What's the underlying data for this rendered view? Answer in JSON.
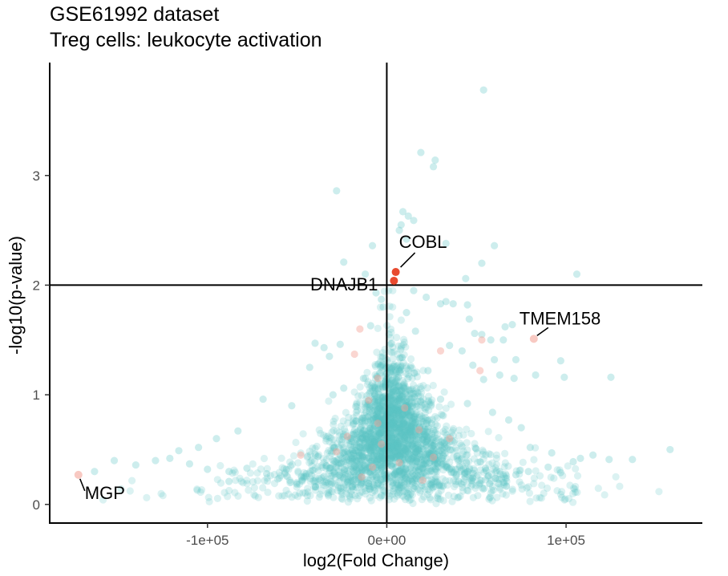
{
  "chart_data": {
    "type": "scatter",
    "title": "GSE61992 dataset",
    "subtitle": "Treg cells: leukocyte activation",
    "xlabel": "log2(Fold Change)",
    "ylabel": "-log10(p-value)",
    "xlim": [
      -188000,
      176000
    ],
    "ylim": [
      -0.17,
      4.03
    ],
    "x_ticks": [
      {
        "value": -100000,
        "label": "-1e+05"
      },
      {
        "value": 0,
        "label": "0e+00"
      },
      {
        "value": 100000,
        "label": "1e+05"
      }
    ],
    "y_ticks": [
      {
        "value": 0,
        "label": "0"
      },
      {
        "value": 1,
        "label": "1"
      },
      {
        "value": 2,
        "label": "2"
      },
      {
        "value": 3,
        "label": "3"
      }
    ],
    "reference_lines": {
      "x": 0,
      "y": 2
    },
    "grid": false,
    "colors": {
      "background_points": "#5bc4c4",
      "highlight_points": "#e84a2f",
      "faint_highlight": "#f4a59a"
    },
    "labeled_points": [
      {
        "gene": "COBL",
        "x": 5000,
        "y": 2.12
      },
      {
        "gene": "DNAJB1",
        "x": 4000,
        "y": 2.04
      },
      {
        "gene": "TMEM158",
        "x": 82000,
        "y": 1.51
      },
      {
        "gene": "MGP",
        "x": -172000,
        "y": 0.27
      }
    ],
    "background_points": [
      [
        54000,
        3.78
      ],
      [
        19000,
        3.21
      ],
      [
        27000,
        3.14
      ],
      [
        26000,
        3.08
      ],
      [
        -28000,
        2.86
      ],
      [
        9000,
        2.67
      ],
      [
        12000,
        2.63
      ],
      [
        15000,
        2.59
      ],
      [
        8000,
        2.55
      ],
      [
        7000,
        2.5
      ],
      [
        11000,
        2.42
      ],
      [
        -8000,
        2.36
      ],
      [
        60000,
        2.36
      ],
      [
        33000,
        2.38
      ],
      [
        106000,
        2.1
      ],
      [
        -24000,
        2.21
      ],
      [
        -12000,
        2.1
      ],
      [
        53000,
        2.2
      ],
      [
        44000,
        2.06
      ],
      [
        15000,
        1.95
      ],
      [
        -6000,
        1.93
      ],
      [
        22000,
        1.89
      ],
      [
        30000,
        1.83
      ],
      [
        -3000,
        1.87
      ],
      [
        33000,
        1.85
      ],
      [
        37000,
        1.83
      ],
      [
        45000,
        1.82
      ],
      [
        -2000,
        1.8
      ],
      [
        11000,
        1.75
      ],
      [
        46000,
        1.69
      ],
      [
        70000,
        1.64
      ],
      [
        66000,
        1.62
      ],
      [
        49000,
        1.56
      ],
      [
        53000,
        1.55
      ],
      [
        58000,
        1.5
      ],
      [
        65000,
        1.5
      ],
      [
        -40000,
        1.47
      ],
      [
        -35000,
        1.43
      ],
      [
        -26000,
        1.46
      ],
      [
        35000,
        1.45
      ],
      [
        42000,
        1.4
      ],
      [
        60000,
        1.32
      ],
      [
        72000,
        1.32
      ],
      [
        -32000,
        1.35
      ],
      [
        -43000,
        1.25
      ],
      [
        48000,
        1.27
      ],
      [
        97000,
        1.31
      ],
      [
        83000,
        1.18
      ],
      [
        99000,
        1.16
      ],
      [
        71000,
        1.15
      ],
      [
        63000,
        1.18
      ],
      [
        54000,
        1.14
      ],
      [
        125000,
        1.16
      ],
      [
        -24000,
        1.06
      ],
      [
        -30000,
        1.0
      ],
      [
        -69000,
        0.96
      ],
      [
        -53000,
        0.9
      ],
      [
        30000,
        0.96
      ],
      [
        45000,
        0.92
      ],
      [
        59000,
        0.84
      ],
      [
        68000,
        0.77
      ],
      [
        75000,
        0.7
      ],
      [
        -83000,
        0.67
      ],
      [
        -95000,
        0.6
      ],
      [
        -105000,
        0.52
      ],
      [
        -116000,
        0.49
      ],
      [
        -121000,
        0.42
      ],
      [
        -129000,
        0.4
      ],
      [
        -140000,
        0.36
      ],
      [
        -152000,
        0.4
      ],
      [
        -163000,
        0.3
      ],
      [
        -110000,
        0.37
      ],
      [
        -100000,
        0.32
      ],
      [
        -88000,
        0.3
      ],
      [
        -78000,
        0.33
      ],
      [
        -67000,
        0.28
      ],
      [
        -56000,
        0.32
      ],
      [
        -45000,
        0.28
      ],
      [
        45000,
        0.3
      ],
      [
        55000,
        0.33
      ],
      [
        63000,
        0.3
      ],
      [
        72000,
        0.27
      ],
      [
        79000,
        0.3
      ],
      [
        90000,
        0.34
      ],
      [
        97000,
        0.29
      ],
      [
        108000,
        0.42
      ],
      [
        115000,
        0.45
      ],
      [
        124000,
        0.41
      ],
      [
        137000,
        0.41
      ],
      [
        158000,
        0.5
      ],
      [
        92000,
        0.47
      ],
      [
        104000,
        0.39
      ],
      [
        -88000,
        0.21
      ],
      [
        -60000,
        0.24
      ],
      [
        40000,
        0.21
      ],
      [
        65000,
        0.2
      ],
      [
        80000,
        0.52
      ],
      [
        -20000,
        0.22
      ],
      [
        -32000,
        0.33
      ],
      [
        -13000,
        1.15
      ],
      [
        -17000,
        0.76
      ],
      [
        25000,
        0.74
      ],
      [
        23000,
        1.22
      ],
      [
        16000,
        1.58
      ],
      [
        -9000,
        1.63
      ]
    ],
    "faint_highlight_points": [
      [
        -18000,
        1.37
      ],
      [
        -15000,
        1.6
      ],
      [
        53000,
        1.5
      ],
      [
        -5000,
        1.15
      ],
      [
        -10000,
        0.95
      ],
      [
        -5000,
        0.74
      ],
      [
        18000,
        0.68
      ],
      [
        -48000,
        0.45
      ],
      [
        -22000,
        0.62
      ],
      [
        35000,
        0.6
      ],
      [
        7000,
        0.38
      ],
      [
        -8000,
        0.34
      ],
      [
        26000,
        0.43
      ],
      [
        -14000,
        0.25
      ],
      [
        20000,
        0.22
      ],
      [
        -3000,
        0.55
      ],
      [
        10000,
        0.88
      ],
      [
        52000,
        1.22
      ],
      [
        30000,
        1.4
      ],
      [
        -28000,
        0.48
      ]
    ]
  }
}
